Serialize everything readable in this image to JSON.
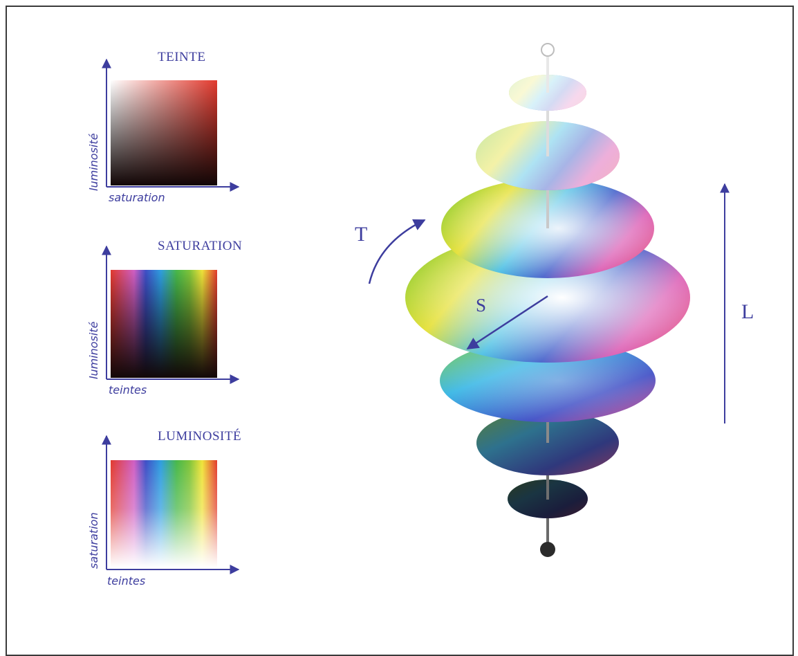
{
  "panels": [
    {
      "title": "TEINTE",
      "xlabel": "saturation",
      "ylabel": "luminosité"
    },
    {
      "title": "SATURATION",
      "xlabel": "teintes",
      "ylabel": "luminosité"
    },
    {
      "title": "LUMINOSITÉ",
      "xlabel": "teintes",
      "ylabel": "saturation"
    }
  ],
  "solid": {
    "hue_label": "T",
    "saturation_label": "S",
    "lightness_label": "L"
  },
  "colors": {
    "accent": "#3d3d9e",
    "frame": "#3a3a3a",
    "hue_red": "#e23a2e"
  }
}
